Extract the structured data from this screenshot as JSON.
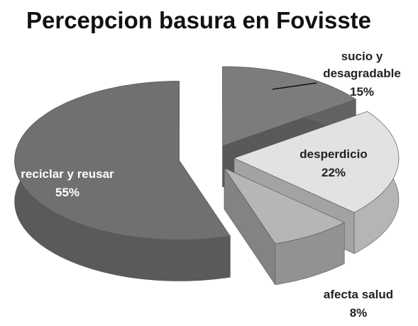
{
  "chart_data": {
    "type": "pie",
    "title": "Percepcion basura en Fovisste",
    "categories": [
      "sucio y desagradable",
      "desperdicio",
      "afecta salud",
      "reciclar y reusar"
    ],
    "values": [
      15,
      22,
      8,
      55
    ],
    "value_labels": [
      "15%",
      "22%",
      "8%",
      "55%"
    ],
    "colors": [
      "#7c7c7c",
      "#e2e2e2",
      "#b6b6b6",
      "#707070"
    ]
  }
}
